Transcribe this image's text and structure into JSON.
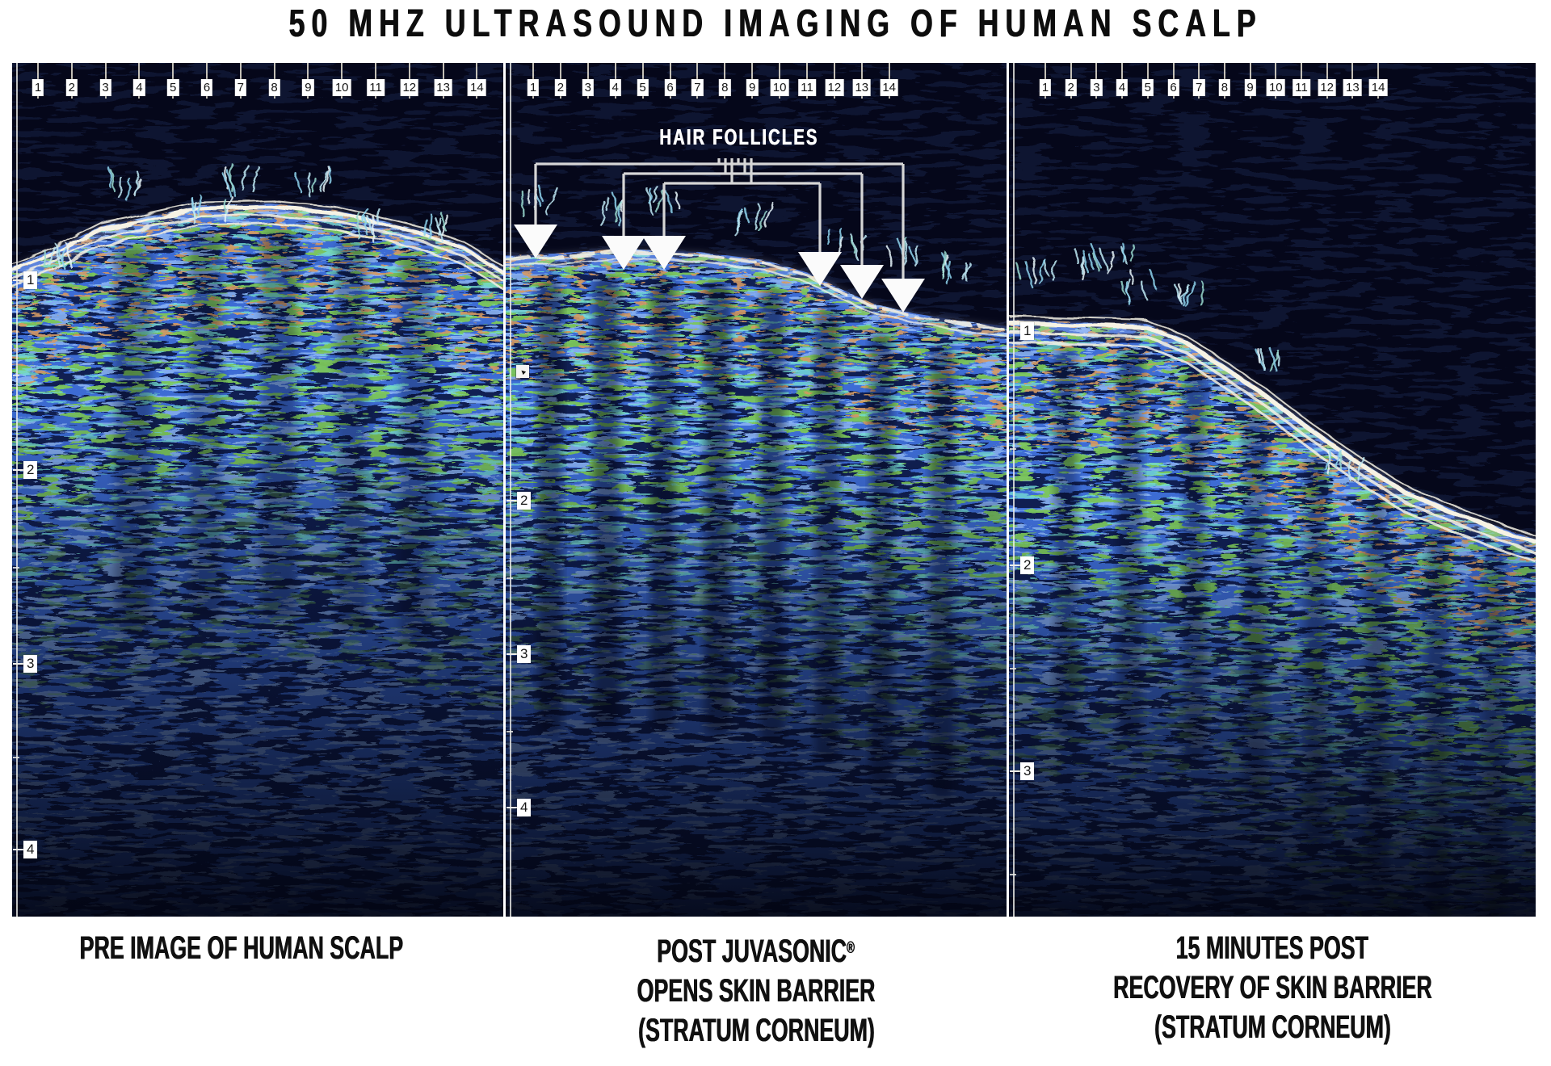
{
  "title": "50 MHZ ULTRASOUND IMAGING OF HUMAN SCALP",
  "annotation": {
    "label": "HAIR FOLLICLES",
    "arrow_count": 6
  },
  "palette": {
    "background": "#ffffff",
    "text": "#101010",
    "air_navy": "#05071a",
    "tissue_base": "#101f52",
    "tissue_blue": "#3d6cd4",
    "tissue_light_blue": "#8ab4f4",
    "tissue_green": "#7cc75a",
    "tissue_cyan": "#74dcd4",
    "tissue_tan": "#d59a62",
    "surface_white": "#f6f2e4",
    "callout_gray": "#d6d6d6",
    "arrow_white": "#fbfbfb",
    "ruler_box_bg": "#ffffff",
    "ruler_text": "#161616"
  },
  "panels": [
    {
      "id": "pre",
      "caption_lines": [
        "PRE IMAGE OF HUMAN SCALP"
      ],
      "top_ruler_labels": [
        "1",
        "2",
        "3",
        "4",
        "5",
        "6",
        "7",
        "8",
        "9",
        "10",
        "11",
        "12",
        "13",
        "14"
      ],
      "side_ruler_labels": [
        "1",
        "2",
        "3",
        "4"
      ]
    },
    {
      "id": "post",
      "caption_lines": [
        "POST JUVASONIC®",
        "OPENS SKIN BARRIER",
        "(STRATUM CORNEUM)"
      ],
      "top_ruler_labels": [
        "1",
        "2",
        "3",
        "4",
        "5",
        "6",
        "7",
        "8",
        "9",
        "10",
        "11",
        "12",
        "13",
        "14"
      ],
      "side_ruler_labels": [
        "2",
        "3",
        "4"
      ]
    },
    {
      "id": "recovery",
      "caption_lines": [
        "15 MINUTES POST",
        "RECOVERY OF SKIN BARRIER",
        "(STRATUM CORNEUM)"
      ],
      "top_ruler_labels": [
        "1",
        "2",
        "3",
        "4",
        "5",
        "6",
        "7",
        "8",
        "9",
        "10",
        "11",
        "12",
        "13",
        "14"
      ],
      "side_ruler_labels": [
        "1",
        "2",
        "3"
      ]
    }
  ]
}
